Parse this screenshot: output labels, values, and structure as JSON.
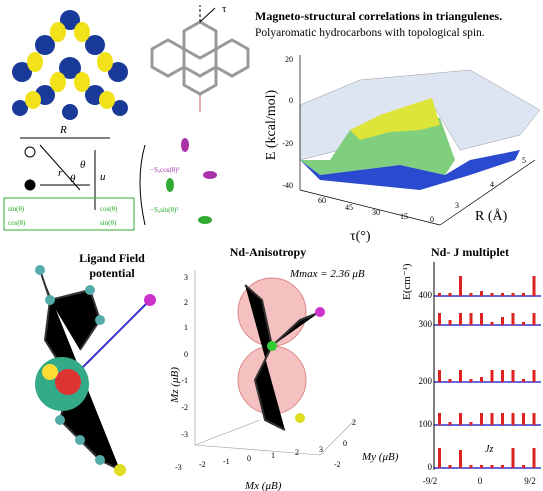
{
  "header": {
    "title": "Magneto-structural correlations in triangulenes.",
    "subtitle": "Polyaromatic hydrocarbons with topological spin."
  },
  "triangulene": {
    "angle": "τ",
    "labels": [
      "R",
      "θ",
      "r",
      "u",
      "θ"
    ],
    "overlap": [
      "sin(θ)",
      "cos(θ)",
      "cos(θ)",
      "sin(θ)"
    ],
    "terms": [
      "−Sᵤcos(θ)²",
      "−Sᵤsin(θ)²"
    ]
  },
  "plot3d": {
    "zlabel": "E (kcal/mol)",
    "zticks": [
      20,
      0,
      -20,
      -40
    ],
    "xlabel": "τ(°)",
    "xticks": [
      60,
      45,
      30,
      15,
      0
    ],
    "ylabel": "R (Å)",
    "yticks": [
      3,
      4,
      5
    ]
  },
  "ligand": {
    "title": [
      "Ligand Field",
      "potential"
    ]
  },
  "anisotropy": {
    "title": "Nd-Anisotropy",
    "mmax": "Mmax = 2.36 μB",
    "zlabel": "Mz (μB)",
    "ylabel": "My (μB)",
    "xlabel": "Mx (μB)",
    "zticks": [
      3,
      2,
      1,
      0,
      -1,
      -2,
      -3
    ],
    "xticks": [
      -3,
      -2,
      -1,
      0,
      1,
      2,
      3
    ],
    "yticks": [
      2,
      0,
      -2
    ]
  },
  "multiplet": {
    "title": "Nd- J multiplet",
    "ylabel": "E(cm⁻¹)",
    "yticks": [
      400,
      300,
      200,
      100,
      0
    ],
    "xticks": [
      "-9/2",
      "0",
      "9/2"
    ],
    "xlabel": "Jz"
  }
}
